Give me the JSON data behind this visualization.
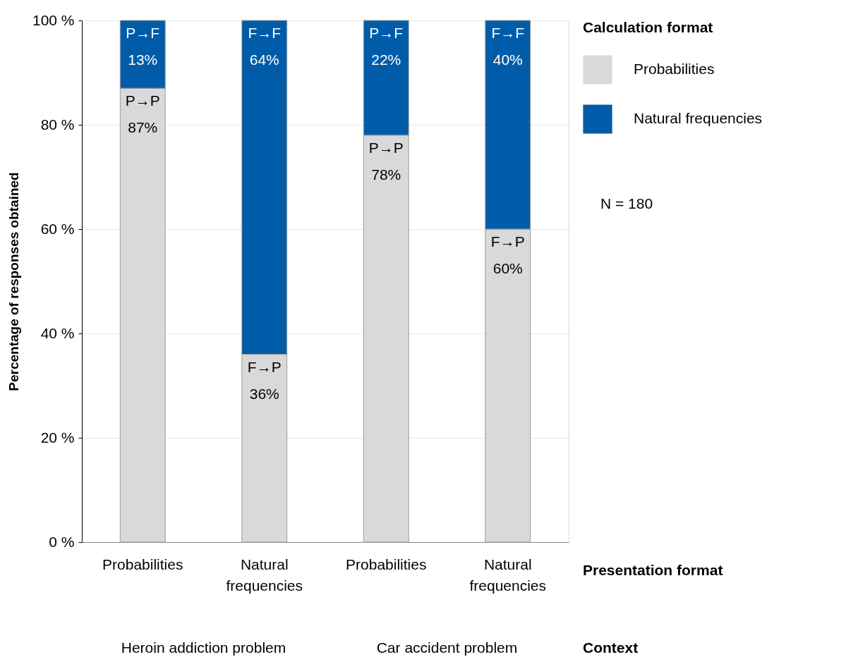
{
  "chart_data": {
    "type": "bar",
    "stacked": true,
    "categories": [
      "Probabilities",
      "Natural frequencies",
      "Probabilities",
      "Natural frequencies"
    ],
    "series": [
      {
        "name": "Probabilities",
        "color": "#d9d9d9",
        "values": [
          87,
          36,
          78,
          60
        ],
        "value_labels": [
          "P→P\n87%",
          "F→P\n36%",
          "P→P\n78%",
          "F→P\n60%"
        ]
      },
      {
        "name": "Natural frequencies",
        "color": "#005ca9",
        "values": [
          13,
          64,
          22,
          40
        ],
        "value_labels": [
          "P→F\n13%",
          "F→F\n64%",
          "P→F\n22%",
          "F→F\n40%"
        ]
      }
    ],
    "ylim": [
      0,
      100
    ],
    "yticks": [
      {
        "value": 0,
        "label": "0 %"
      },
      {
        "value": 20,
        "label": "20 %"
      },
      {
        "value": 40,
        "label": "40 %"
      },
      {
        "value": 60,
        "label": "60 %"
      },
      {
        "value": 80,
        "label": "80 %"
      },
      {
        "value": 100,
        "label": "100 %"
      }
    ],
    "ylabel": "Percentage of responses obtained",
    "xlabel": "Presentation format",
    "legend_title": "Calculation format",
    "legend": "top right",
    "grid": "y",
    "annotations": [
      "N = 180",
      "Heroin addiction problem",
      "Car accident problem",
      "Context"
    ]
  }
}
